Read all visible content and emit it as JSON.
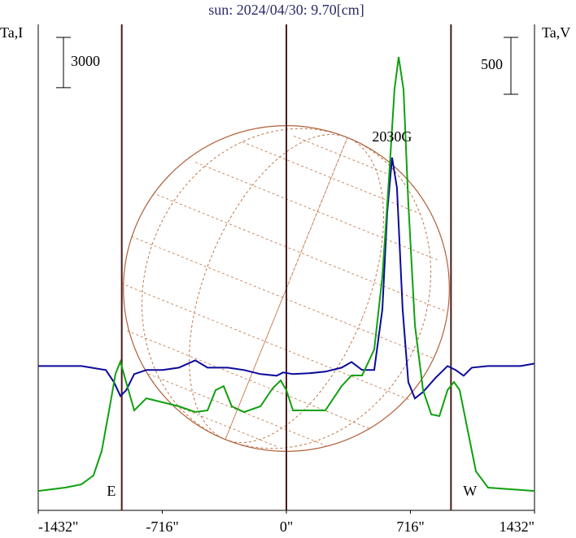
{
  "chart_data": {
    "type": "line",
    "title": "sun: 2024/04/30: 9.70[cm]",
    "y_label": "Ta,I",
    "y2_label": "Ta,V",
    "xlim": [
      -1432,
      1432
    ],
    "xticks": [
      {
        "value": -1432,
        "label": "-1432\""
      },
      {
        "value": -716,
        "label": "-716\""
      },
      {
        "value": 0,
        "label": "0\""
      },
      {
        "value": 716,
        "label": "716\""
      },
      {
        "value": 1432,
        "label": "1432\""
      }
    ],
    "ylim": [
      0,
      29000
    ],
    "y2lim": [
      0,
      4270
    ],
    "scale_bars": [
      {
        "axis": "y",
        "value": 3000
      },
      {
        "axis": "y2",
        "value": 500
      }
    ],
    "vlines": [
      -950,
      0,
      950
    ],
    "annotations": [
      {
        "text": "E",
        "x": -1010
      },
      {
        "text": "W",
        "x": 1060
      },
      {
        "text": "2030G",
        "x": 610
      }
    ],
    "series": [
      {
        "name": "Ta,I",
        "color": "#0a0a9a",
        "x": [
          -1432,
          -1183,
          -1042,
          -995,
          -958,
          -925,
          -878,
          -808,
          -714,
          -620,
          -526,
          -455,
          -338,
          -244,
          -150,
          -56,
          -19,
          38,
          131,
          225,
          319,
          376,
          437,
          507,
          554,
          582,
          610,
          638,
          671,
          704,
          742,
          789,
          859,
          930,
          977,
          1023,
          1070,
          1164,
          1352,
          1432
        ],
        "values": [
          8615,
          8615,
          8373,
          7647,
          6825,
          7163,
          8131,
          8373,
          8373,
          8518,
          8954,
          8518,
          8518,
          8373,
          8131,
          8034,
          8228,
          8131,
          8180,
          8276,
          8518,
          8857,
          8373,
          8373,
          12003,
          17811,
          21054,
          19263,
          12003,
          7647,
          6679,
          7066,
          7889,
          8615,
          8373,
          8034,
          8518,
          8615,
          8615,
          8760
        ]
      },
      {
        "name": "Ta,V",
        "color": "#10a010",
        "axis": "y2",
        "x": [
          -1432,
          -1277,
          -1183,
          -1113,
          -1066,
          -1019,
          -986,
          -958,
          -925,
          -878,
          -808,
          -714,
          -620,
          -526,
          -455,
          -408,
          -362,
          -315,
          -244,
          -150,
          -80,
          -33,
          0,
          38,
          131,
          225,
          319,
          376,
          437,
          507,
          554,
          592,
          624,
          648,
          676,
          704,
          742,
          789,
          836,
          883,
          930,
          967,
          1000,
          1047,
          1094,
          1164,
          1352,
          1432
        ],
        "values": [
          171,
          200,
          228,
          307,
          521,
          914,
          1200,
          1307,
          1128,
          878,
          985,
          950,
          914,
          864,
          878,
          1057,
          1092,
          914,
          864,
          914,
          1071,
          1142,
          1057,
          878,
          878,
          878,
          1092,
          1185,
          1185,
          1414,
          2056,
          2913,
          3699,
          3984,
          3699,
          2699,
          1628,
          1057,
          843,
          828,
          1057,
          1128,
          1057,
          700,
          343,
          200,
          179,
          171
        ]
      }
    ]
  }
}
